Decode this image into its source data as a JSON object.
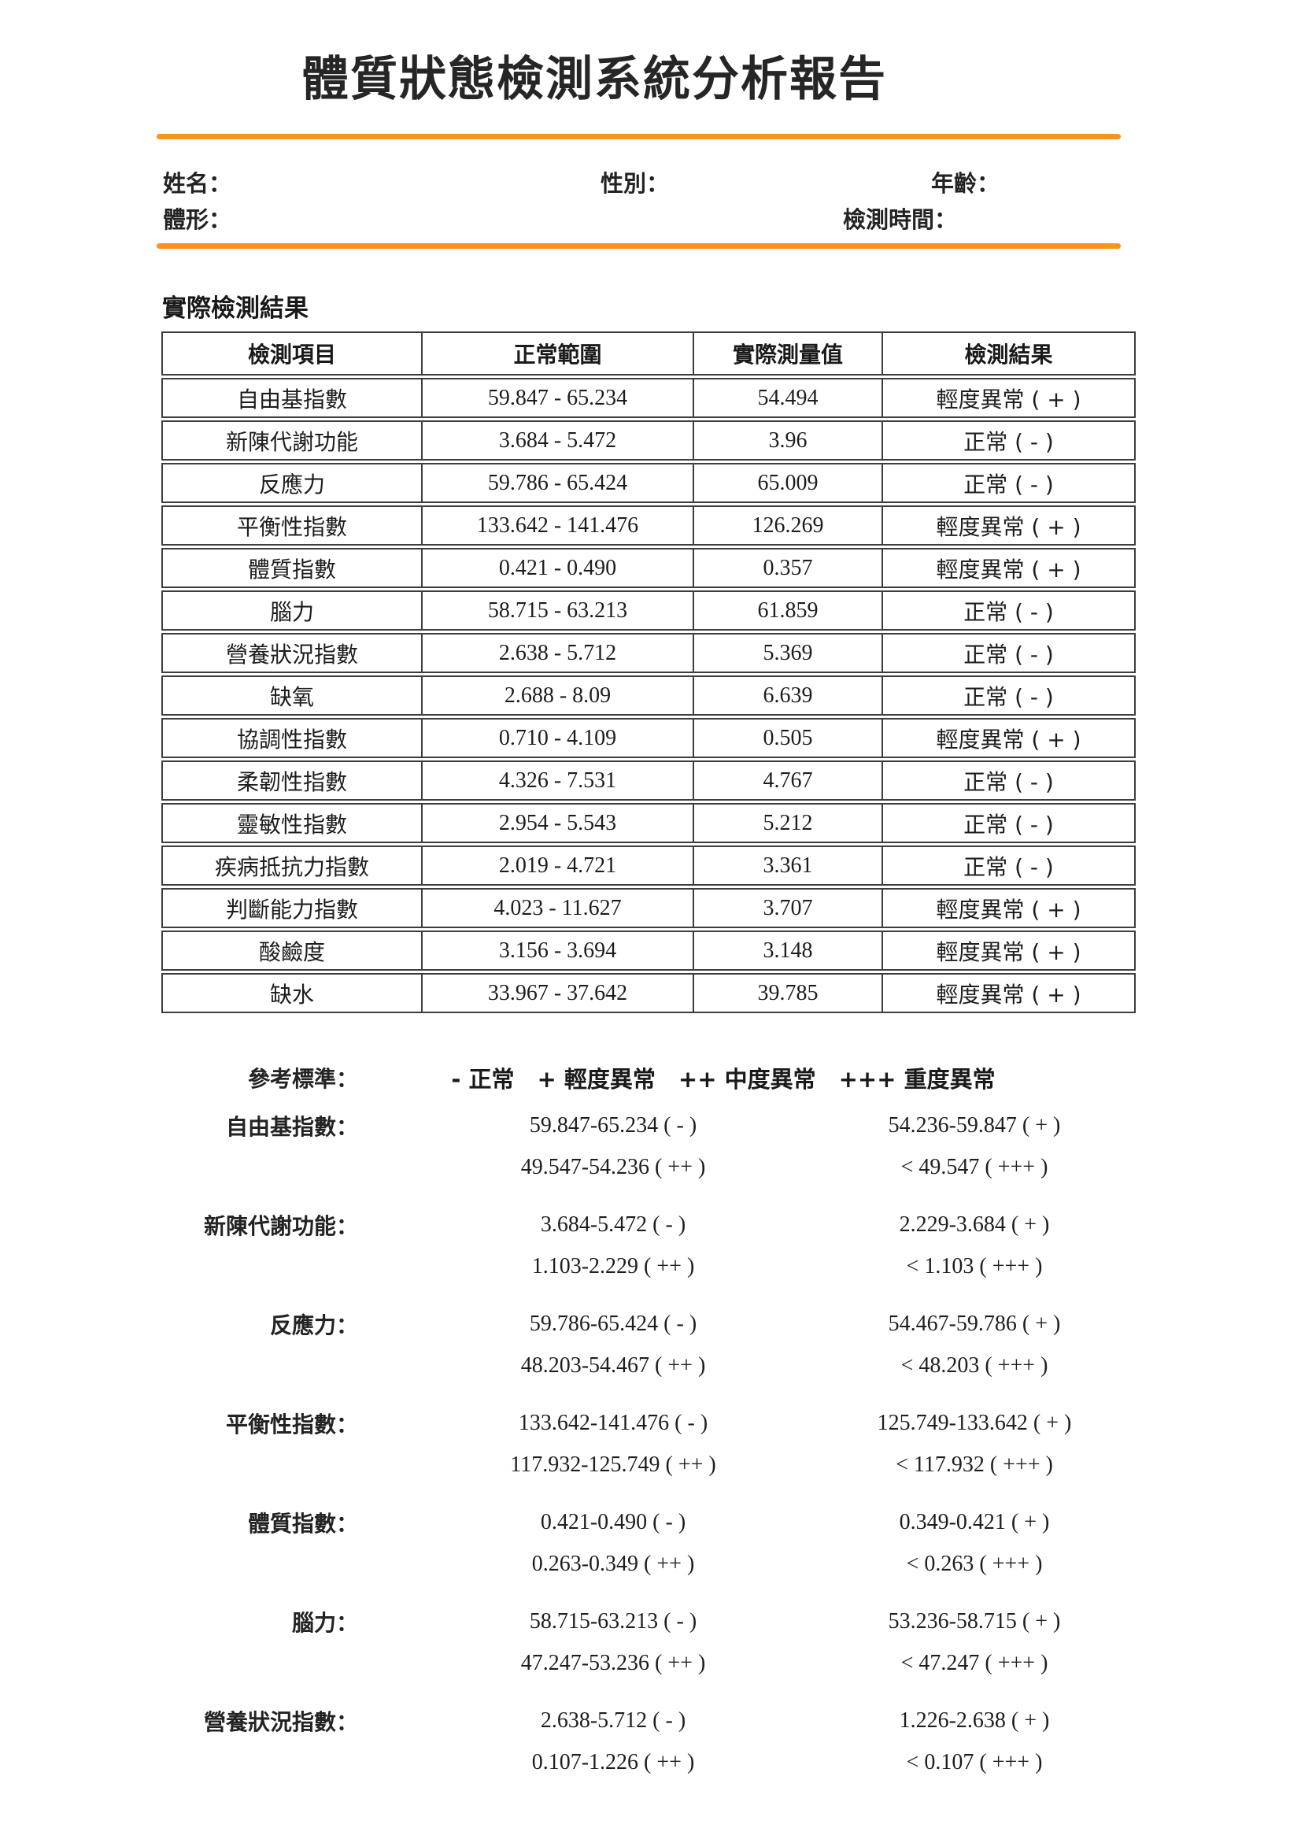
{
  "title": "體質狀態檢測系統分析報告",
  "accent_color": "#F7941D",
  "patient": {
    "name_label": "姓名：",
    "gender_label": "性別：",
    "age_label": "年齡：",
    "body_type_label": "體形：",
    "test_time_label": "檢測時間："
  },
  "results_section": {
    "heading": "實際檢測結果",
    "table": {
      "headers": [
        "檢測項目",
        "正常範圍",
        "實際測量值",
        "檢測結果"
      ],
      "rows": [
        {
          "item": "自由基指數",
          "range": "59.847 - 65.234",
          "value": "54.494",
          "result": "輕度異常 ( + )"
        },
        {
          "item": "新陳代謝功能",
          "range": "3.684 - 5.472",
          "value": "3.96",
          "result": "正常 ( - )"
        },
        {
          "item": "反應力",
          "range": "59.786 - 65.424",
          "value": "65.009",
          "result": "正常 ( - )"
        },
        {
          "item": "平衡性指數",
          "range": "133.642 - 141.476",
          "value": "126.269",
          "result": "輕度異常 ( + )"
        },
        {
          "item": "體質指數",
          "range": "0.421 - 0.490",
          "value": "0.357",
          "result": "輕度異常 ( + )"
        },
        {
          "item": "腦力",
          "range": "58.715 - 63.213",
          "value": "61.859",
          "result": "正常 ( - )"
        },
        {
          "item": "營養狀況指數",
          "range": "2.638 - 5.712",
          "value": "5.369",
          "result": "正常 ( - )"
        },
        {
          "item": "缺氧",
          "range": "2.688 - 8.09",
          "value": "6.639",
          "result": "正常 ( - )"
        },
        {
          "item": "協調性指數",
          "range": "0.710 - 4.109",
          "value": "0.505",
          "result": "輕度異常 ( + )"
        },
        {
          "item": "柔韌性指數",
          "range": "4.326 - 7.531",
          "value": "4.767",
          "result": "正常 ( - )"
        },
        {
          "item": "靈敏性指數",
          "range": "2.954 - 5.543",
          "value": "5.212",
          "result": "正常 ( - )"
        },
        {
          "item": "疾病抵抗力指數",
          "range": "2.019 - 4.721",
          "value": "3.361",
          "result": "正常 ( - )"
        },
        {
          "item": "判斷能力指數",
          "range": "4.023 - 11.627",
          "value": "3.707",
          "result": "輕度異常 ( + )"
        },
        {
          "item": "酸鹼度",
          "range": "3.156 - 3.694",
          "value": "3.148",
          "result": "輕度異常 ( + )"
        },
        {
          "item": "缺水",
          "range": "33.967 - 37.642",
          "value": "39.785",
          "result": "輕度異常 ( + )"
        }
      ]
    }
  },
  "reference_section": {
    "heading": "參考標準：",
    "legend": "- 正常　+ 輕度異常　++ 中度異常　+++ 重度異常",
    "items": [
      {
        "label": "自由基指數：",
        "normal": "59.847-65.234 ( - )",
        "mild": "54.236-59.847 ( + )",
        "moderate": "49.547-54.236 ( ++ )",
        "severe": "< 49.547 ( +++ )"
      },
      {
        "label": "新陳代謝功能：",
        "normal": "3.684-5.472 ( - )",
        "mild": "2.229-3.684 ( + )",
        "moderate": "1.103-2.229 ( ++ )",
        "severe": "< 1.103 ( +++ )"
      },
      {
        "label": "反應力：",
        "normal": "59.786-65.424 ( - )",
        "mild": "54.467-59.786 ( + )",
        "moderate": "48.203-54.467 ( ++ )",
        "severe": "< 48.203 ( +++ )"
      },
      {
        "label": "平衡性指數：",
        "normal": "133.642-141.476 ( - )",
        "mild": "125.749-133.642 ( + )",
        "moderate": "117.932-125.749 ( ++ )",
        "severe": "< 117.932 ( +++ )"
      },
      {
        "label": "體質指數：",
        "normal": "0.421-0.490 ( - )",
        "mild": "0.349-0.421 ( + )",
        "moderate": "0.263-0.349 ( ++ )",
        "severe": "< 0.263 ( +++ )"
      },
      {
        "label": "腦力：",
        "normal": "58.715-63.213 ( - )",
        "mild": "53.236-58.715 ( + )",
        "moderate": "47.247-53.236 ( ++ )",
        "severe": "< 47.247 ( +++ )"
      },
      {
        "label": "營養狀況指數：",
        "normal": "2.638-5.712 ( - )",
        "mild": "1.226-2.638 ( + )",
        "moderate": "0.107-1.226 ( ++ )",
        "severe": "< 0.107 ( +++ )"
      }
    ]
  }
}
